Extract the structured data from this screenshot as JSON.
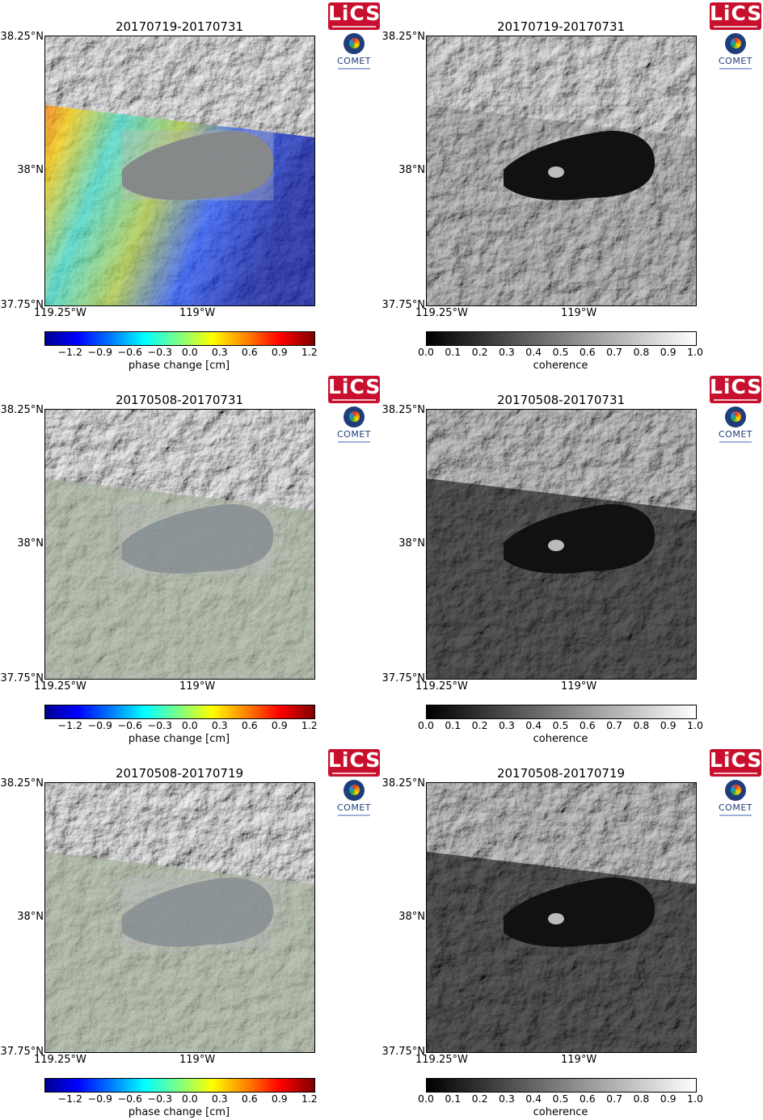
{
  "colors": {
    "phase_low": "#000090",
    "phase_high": "#800000",
    "coh_low": "#000000",
    "coh_high": "#ffffff"
  },
  "axes": {
    "lat_labels": [
      "38.25°N",
      "38°N",
      "37.75°N"
    ],
    "lon_labels": [
      "119.25°W",
      "119°W"
    ]
  },
  "logos": {
    "lics": "LiCS",
    "comet": "COMET"
  },
  "colorbars": {
    "phase": {
      "label": "phase change [cm]",
      "ticks": [
        "−1.2",
        "−0.9",
        "−0.6",
        "−0.3",
        "0.0",
        "0.3",
        "0.6",
        "0.9",
        "1.2"
      ]
    },
    "coherence": {
      "label": "coherence",
      "ticks": [
        "0.0",
        "0.1",
        "0.2",
        "0.3",
        "0.4",
        "0.5",
        "0.6",
        "0.7",
        "0.8",
        "0.9",
        "1.0"
      ]
    }
  },
  "panels": [
    {
      "title": "20170719-20170731",
      "kind": "phase",
      "coherence_level": "high"
    },
    {
      "title": "20170719-20170731",
      "kind": "coherence",
      "coherence_level": "high"
    },
    {
      "title": "20170508-20170731",
      "kind": "phase",
      "coherence_level": "low"
    },
    {
      "title": "20170508-20170731",
      "kind": "coherence",
      "coherence_level": "low"
    },
    {
      "title": "20170508-20170719",
      "kind": "phase",
      "coherence_level": "low"
    },
    {
      "title": "20170508-20170719",
      "kind": "coherence",
      "coherence_level": "low"
    }
  ]
}
